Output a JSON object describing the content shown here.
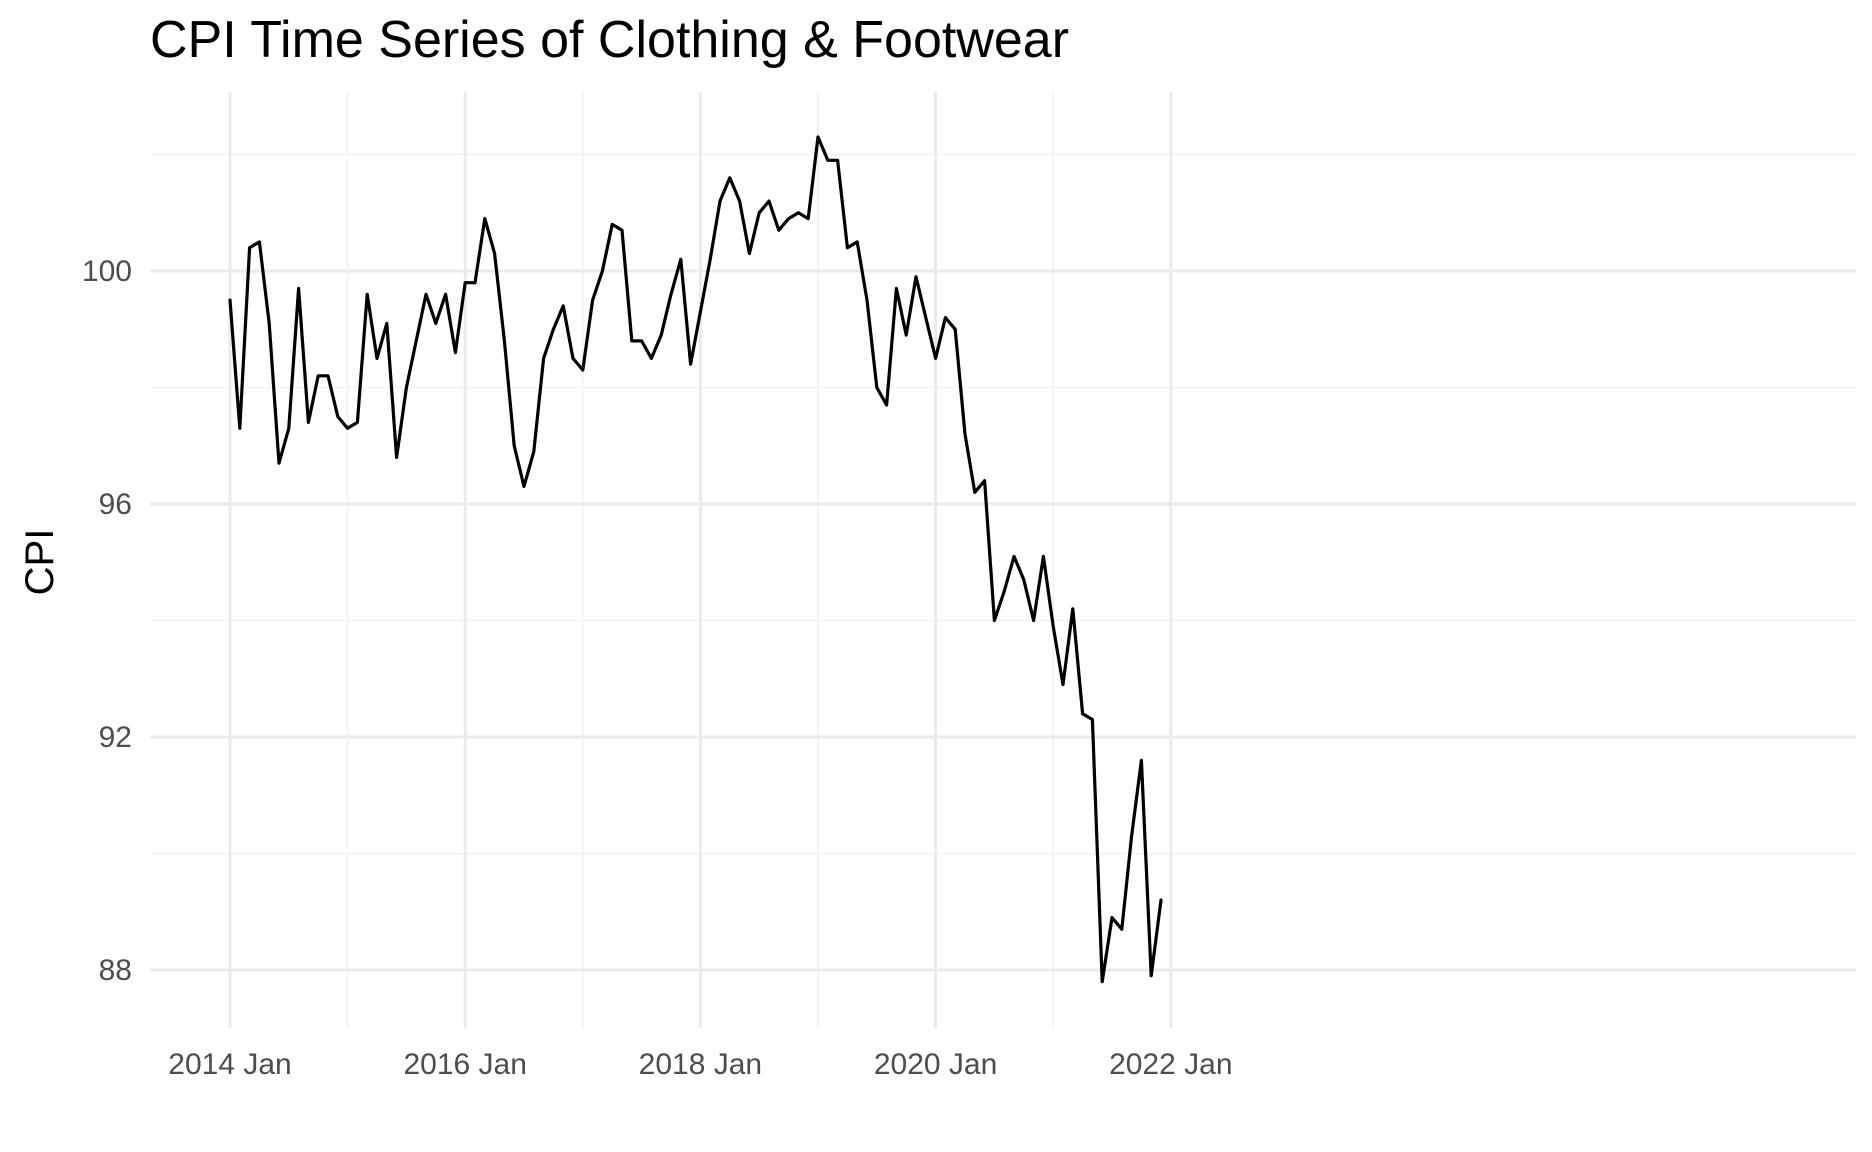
{
  "chart_data": {
    "type": "line",
    "title": "CPI Time Series of Clothing & Footwear",
    "xlabel": "",
    "ylabel": "CPI",
    "x_start": "2014-01",
    "x_ticks": [
      "2014 Jan",
      "2016 Jan",
      "2018 Jan",
      "2020 Jan",
      "2022 Jan"
    ],
    "y_ticks": [
      88,
      92,
      96,
      100
    ],
    "ylim": [
      87.1,
      103.3
    ],
    "grid": true,
    "colors": {
      "line": "#000000",
      "grid_major": "#ebebeb",
      "grid_minor": "#f2f2f2"
    },
    "series": [
      {
        "values": [
          99.5,
          97.3,
          100.4,
          100.5,
          99.1,
          96.7,
          97.3,
          99.7,
          97.4,
          98.2,
          98.2,
          97.5,
          97.3,
          97.4,
          99.6,
          98.5,
          99.1,
          96.8,
          98.0,
          98.8,
          99.6,
          99.1,
          99.6,
          98.6,
          99.8,
          99.8,
          100.9,
          100.3,
          98.8,
          97.0,
          96.3,
          96.9,
          98.5,
          99.0,
          99.4,
          98.5,
          98.3,
          99.5,
          100.0,
          100.8,
          100.7,
          98.8,
          98.8,
          98.5,
          98.9,
          99.6,
          100.2,
          98.4,
          99.3,
          100.2,
          101.2,
          101.6,
          101.2,
          100.3,
          101.0,
          101.2,
          100.7,
          100.9,
          101.0,
          100.9,
          102.3,
          101.9,
          101.9,
          100.4,
          100.5,
          99.5,
          98.0,
          97.7,
          99.7,
          98.9,
          99.9,
          99.2,
          98.5,
          99.2,
          99.0,
          97.2,
          96.2,
          96.4,
          94.0,
          94.5,
          95.1,
          94.7,
          94.0,
          95.1,
          93.9,
          92.9,
          94.2,
          92.4,
          92.3,
          87.8,
          88.9,
          88.7,
          90.3,
          91.6,
          87.9,
          89.2
        ]
      }
    ]
  }
}
